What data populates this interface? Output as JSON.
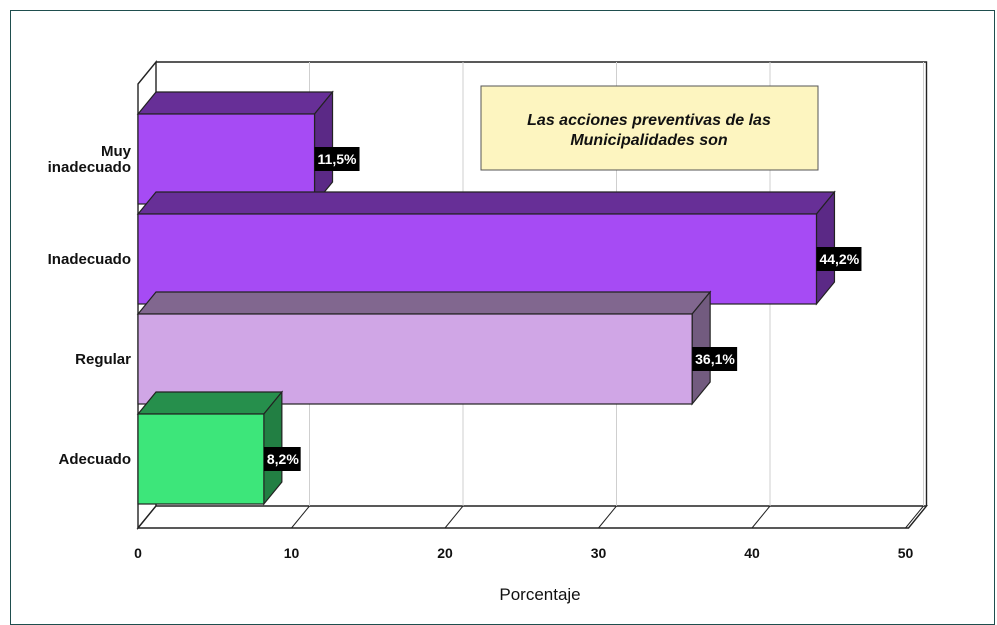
{
  "chart_data": {
    "type": "bar",
    "orientation": "horizontal",
    "categories": [
      "Muy inadecuado",
      "Inadecuado",
      "Regular",
      "Adecuado"
    ],
    "category_lines": [
      [
        "Muy",
        "inadecuado"
      ],
      [
        "Inadecuado"
      ],
      [
        "Regular"
      ],
      [
        "Adecuado"
      ]
    ],
    "values": [
      11.5,
      44.2,
      36.1,
      8.2
    ],
    "value_labels": [
      "11,5%",
      "44,2%",
      "36,1%",
      "8,2%"
    ],
    "colors": [
      "#a64bf4",
      "#a64bf4",
      "#d0a6e6",
      "#3de67a"
    ],
    "xlabel": "Porcentaje",
    "xlim": [
      0,
      50
    ],
    "xticks": [
      0,
      10,
      20,
      30,
      40,
      50
    ],
    "grid": true,
    "legend_box": {
      "lines": [
        "Las acciones preventivas de las",
        "Municipalidades son"
      ],
      "background": "#fdf5c0"
    }
  }
}
